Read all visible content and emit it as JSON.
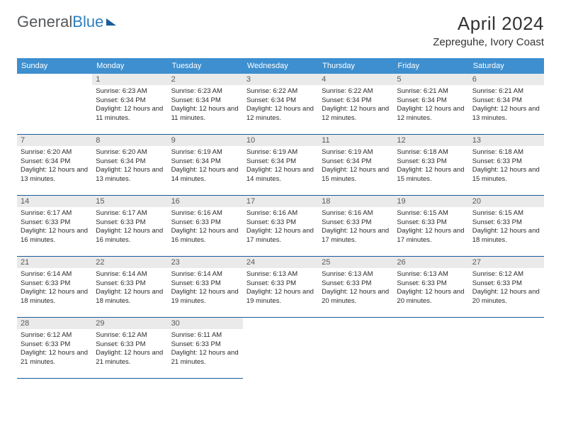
{
  "logo": {
    "text1": "General",
    "text2": "Blue"
  },
  "title": "April 2024",
  "location": "Zepreguhe, Ivory Coast",
  "header_bg": "#3d8fcf",
  "border_color": "#1a5b99",
  "daynum_bg": "#eaeaea",
  "daynames": [
    "Sunday",
    "Monday",
    "Tuesday",
    "Wednesday",
    "Thursday",
    "Friday",
    "Saturday"
  ],
  "startOffset": 1,
  "days": [
    {
      "n": 1,
      "sunrise": "6:23 AM",
      "sunset": "6:34 PM",
      "daylight": "12 hours and 11 minutes."
    },
    {
      "n": 2,
      "sunrise": "6:23 AM",
      "sunset": "6:34 PM",
      "daylight": "12 hours and 11 minutes."
    },
    {
      "n": 3,
      "sunrise": "6:22 AM",
      "sunset": "6:34 PM",
      "daylight": "12 hours and 12 minutes."
    },
    {
      "n": 4,
      "sunrise": "6:22 AM",
      "sunset": "6:34 PM",
      "daylight": "12 hours and 12 minutes."
    },
    {
      "n": 5,
      "sunrise": "6:21 AM",
      "sunset": "6:34 PM",
      "daylight": "12 hours and 12 minutes."
    },
    {
      "n": 6,
      "sunrise": "6:21 AM",
      "sunset": "6:34 PM",
      "daylight": "12 hours and 13 minutes."
    },
    {
      "n": 7,
      "sunrise": "6:20 AM",
      "sunset": "6:34 PM",
      "daylight": "12 hours and 13 minutes."
    },
    {
      "n": 8,
      "sunrise": "6:20 AM",
      "sunset": "6:34 PM",
      "daylight": "12 hours and 13 minutes."
    },
    {
      "n": 9,
      "sunrise": "6:19 AM",
      "sunset": "6:34 PM",
      "daylight": "12 hours and 14 minutes."
    },
    {
      "n": 10,
      "sunrise": "6:19 AM",
      "sunset": "6:34 PM",
      "daylight": "12 hours and 14 minutes."
    },
    {
      "n": 11,
      "sunrise": "6:19 AM",
      "sunset": "6:34 PM",
      "daylight": "12 hours and 15 minutes."
    },
    {
      "n": 12,
      "sunrise": "6:18 AM",
      "sunset": "6:33 PM",
      "daylight": "12 hours and 15 minutes."
    },
    {
      "n": 13,
      "sunrise": "6:18 AM",
      "sunset": "6:33 PM",
      "daylight": "12 hours and 15 minutes."
    },
    {
      "n": 14,
      "sunrise": "6:17 AM",
      "sunset": "6:33 PM",
      "daylight": "12 hours and 16 minutes."
    },
    {
      "n": 15,
      "sunrise": "6:17 AM",
      "sunset": "6:33 PM",
      "daylight": "12 hours and 16 minutes."
    },
    {
      "n": 16,
      "sunrise": "6:16 AM",
      "sunset": "6:33 PM",
      "daylight": "12 hours and 16 minutes."
    },
    {
      "n": 17,
      "sunrise": "6:16 AM",
      "sunset": "6:33 PM",
      "daylight": "12 hours and 17 minutes."
    },
    {
      "n": 18,
      "sunrise": "6:16 AM",
      "sunset": "6:33 PM",
      "daylight": "12 hours and 17 minutes."
    },
    {
      "n": 19,
      "sunrise": "6:15 AM",
      "sunset": "6:33 PM",
      "daylight": "12 hours and 17 minutes."
    },
    {
      "n": 20,
      "sunrise": "6:15 AM",
      "sunset": "6:33 PM",
      "daylight": "12 hours and 18 minutes."
    },
    {
      "n": 21,
      "sunrise": "6:14 AM",
      "sunset": "6:33 PM",
      "daylight": "12 hours and 18 minutes."
    },
    {
      "n": 22,
      "sunrise": "6:14 AM",
      "sunset": "6:33 PM",
      "daylight": "12 hours and 18 minutes."
    },
    {
      "n": 23,
      "sunrise": "6:14 AM",
      "sunset": "6:33 PM",
      "daylight": "12 hours and 19 minutes."
    },
    {
      "n": 24,
      "sunrise": "6:13 AM",
      "sunset": "6:33 PM",
      "daylight": "12 hours and 19 minutes."
    },
    {
      "n": 25,
      "sunrise": "6:13 AM",
      "sunset": "6:33 PM",
      "daylight": "12 hours and 20 minutes."
    },
    {
      "n": 26,
      "sunrise": "6:13 AM",
      "sunset": "6:33 PM",
      "daylight": "12 hours and 20 minutes."
    },
    {
      "n": 27,
      "sunrise": "6:12 AM",
      "sunset": "6:33 PM",
      "daylight": "12 hours and 20 minutes."
    },
    {
      "n": 28,
      "sunrise": "6:12 AM",
      "sunset": "6:33 PM",
      "daylight": "12 hours and 21 minutes."
    },
    {
      "n": 29,
      "sunrise": "6:12 AM",
      "sunset": "6:33 PM",
      "daylight": "12 hours and 21 minutes."
    },
    {
      "n": 30,
      "sunrise": "6:11 AM",
      "sunset": "6:33 PM",
      "daylight": "12 hours and 21 minutes."
    }
  ],
  "labels": {
    "sunrise": "Sunrise:",
    "sunset": "Sunset:",
    "daylight": "Daylight:"
  }
}
